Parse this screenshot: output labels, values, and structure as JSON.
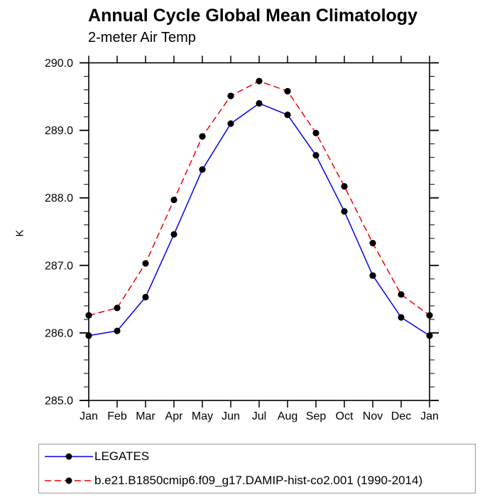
{
  "chart_data": {
    "type": "line",
    "title": "Annual Cycle Global Mean Climatology",
    "subtitle": "2-meter Air Temp",
    "ylabel": "K",
    "xlabel": "",
    "categories": [
      "Jan",
      "Feb",
      "Mar",
      "Apr",
      "May",
      "Jun",
      "Jul",
      "Aug",
      "Sep",
      "Oct",
      "Nov",
      "Dec",
      "Jan"
    ],
    "ylim": [
      285.0,
      290.0
    ],
    "ytick_interval": 1.0,
    "yminor_interval": 0.2,
    "ytick_labels": [
      "285.0",
      "286.0",
      "287.0",
      "288.0",
      "289.0",
      "290.0"
    ],
    "grid": false,
    "legend_position": "bottom-left-outside",
    "marker": "filled-circle",
    "marker_color": "#000000",
    "series": [
      {
        "name": "LEGATES",
        "color": "#0000ee",
        "style": "solid",
        "values": [
          285.96,
          286.03,
          286.53,
          287.46,
          288.42,
          289.1,
          289.4,
          289.23,
          288.63,
          287.8,
          286.85,
          286.23,
          285.96
        ]
      },
      {
        "name": "b.e21.B1850cmip6.f09_g17.DAMIP-hist-co2.001 (1990-2014)",
        "color": "#ee0000",
        "style": "dashed",
        "values": [
          286.26,
          286.37,
          287.03,
          287.97,
          288.91,
          289.51,
          289.73,
          289.58,
          288.96,
          288.17,
          287.33,
          286.57,
          286.26
        ]
      }
    ]
  }
}
